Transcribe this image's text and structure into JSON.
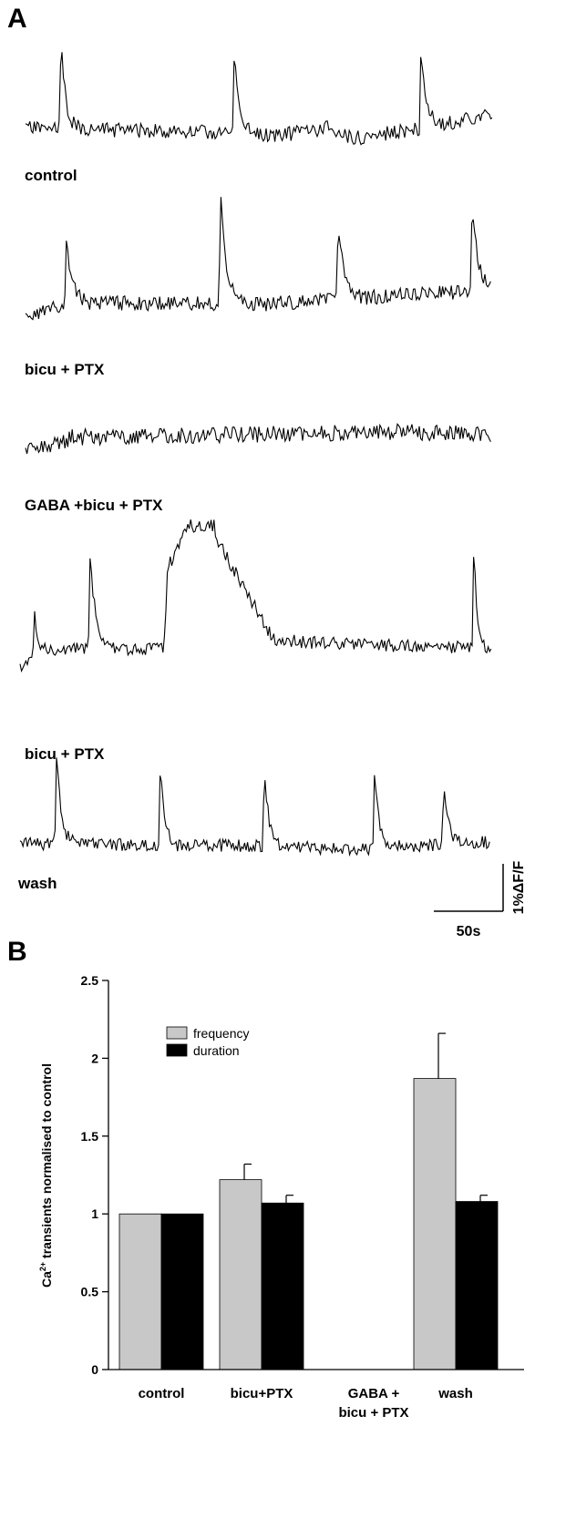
{
  "panel_a": {
    "letter": "A",
    "traces": [
      {
        "label": "control"
      },
      {
        "label": "bicu + PTX"
      },
      {
        "label": "GABA +bicu + PTX"
      },
      {
        "label": "bicu + PTX"
      },
      {
        "label": "wash"
      }
    ],
    "scale_bar": {
      "time_label": "50s",
      "amplitude_label": "1%ΔF/F"
    }
  },
  "panel_b": {
    "letter": "B"
  },
  "chart_data": {
    "type": "bar",
    "title": "",
    "xlabel": "",
    "ylabel": "Ca²⁺ transients normalised to control",
    "ylabel_parts": {
      "pre": "Ca",
      "sup": "2+",
      "post": " transients normalised to control"
    },
    "ylim": [
      0,
      2.5
    ],
    "yticks": [
      "0",
      "0.5",
      "1",
      "1.5",
      "2",
      "2.5"
    ],
    "yticks_values": [
      0,
      0.5,
      1,
      1.5,
      2,
      2.5
    ],
    "categories": [
      "control",
      "bicu+PTX",
      "GABA +\nbicu + PTX",
      "wash"
    ],
    "category_lines": [
      [
        "control"
      ],
      [
        "bicu+PTX"
      ],
      [
        "GABA +",
        "bicu + PTX"
      ],
      [
        "wash"
      ]
    ],
    "series": [
      {
        "name": "frequency",
        "color": "#c8c8c8",
        "values": [
          1.0,
          1.22,
          0,
          1.87
        ],
        "errors": [
          0,
          0.1,
          0,
          0.29
        ]
      },
      {
        "name": "duration",
        "color": "#000000",
        "values": [
          1.0,
          1.07,
          0,
          1.08
        ],
        "errors": [
          0,
          0.05,
          0,
          0.04
        ]
      }
    ],
    "legend_position": "top-left",
    "grid": false
  }
}
